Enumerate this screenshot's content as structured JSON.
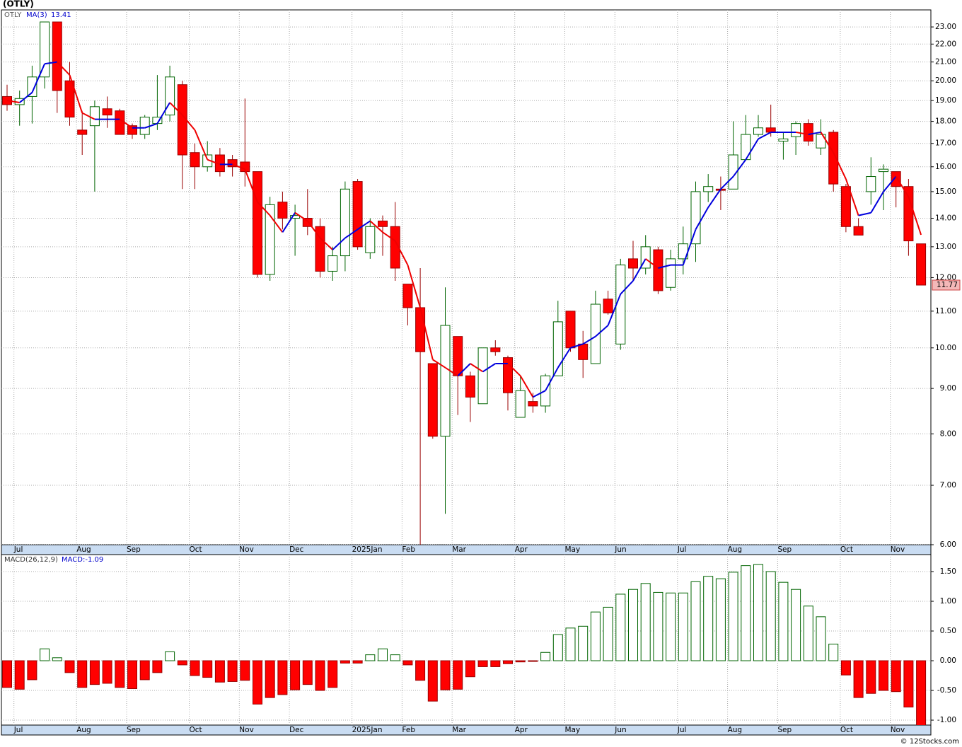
{
  "title": "(OTLY)",
  "footer": "© 12Stocks.com",
  "chart_data": [
    {
      "type": "candlestick",
      "symbol": "OTLY",
      "ma_name": "MA(3)",
      "categories": [
        null,
        "Jul",
        null,
        null,
        null,
        null,
        "Aug",
        null,
        null,
        null,
        "Sep",
        null,
        null,
        null,
        null,
        "Oct",
        null,
        null,
        null,
        "Nov",
        null,
        null,
        null,
        "Dec",
        null,
        null,
        null,
        null,
        "2025Jan",
        null,
        null,
        null,
        "Feb",
        null,
        null,
        null,
        "Mar",
        null,
        null,
        null,
        null,
        "Apr",
        null,
        null,
        null,
        "May",
        null,
        null,
        null,
        "Jun",
        null,
        null,
        null,
        null,
        "Jul",
        null,
        null,
        null,
        "Aug",
        null,
        null,
        null,
        "Sep",
        null,
        null,
        null,
        null,
        "Oct",
        null,
        null,
        null,
        "Nov",
        null,
        null
      ],
      "open": [
        19.2,
        18.8,
        19.2,
        20.2,
        23.3,
        20.0,
        17.6,
        17.8,
        18.6,
        18.5,
        17.8,
        17.4,
        17.9,
        18.3,
        19.8,
        16.6,
        16.0,
        16.5,
        16.3,
        16.2,
        15.8,
        12.1,
        14.6,
        14.0,
        14.0,
        13.7,
        12.2,
        12.7,
        15.4,
        12.8,
        13.9,
        13.7,
        11.8,
        11.1,
        9.6,
        7.95,
        10.3,
        9.3,
        8.65,
        10.0,
        9.75,
        8.35,
        8.7,
        8.6,
        9.3,
        11.0,
        10.1,
        9.6,
        11.35,
        10.1,
        12.6,
        12.3,
        12.9,
        11.7,
        12.6,
        13.1,
        15.0,
        15.1,
        15.1,
        16.3,
        17.4,
        17.7,
        17.1,
        17.3,
        17.9,
        16.8,
        17.5,
        15.2,
        13.7,
        15.0,
        15.8,
        15.8,
        15.2,
        13.1
      ],
      "high": [
        19.8,
        19.5,
        20.8,
        23.3,
        23.3,
        21.0,
        18.5,
        19.0,
        19.2,
        18.6,
        17.9,
        18.3,
        20.3,
        20.8,
        20.0,
        17.0,
        17.1,
        16.8,
        16.5,
        19.1,
        15.8,
        14.8,
        15.0,
        14.5,
        15.1,
        14.0,
        13.0,
        15.4,
        15.5,
        14.0,
        14.1,
        14.6,
        11.8,
        12.3,
        9.6,
        11.7,
        10.3,
        9.4,
        10.0,
        10.2,
        9.8,
        9.3,
        8.9,
        9.35,
        11.3,
        11.0,
        10.45,
        11.6,
        11.6,
        12.6,
        13.2,
        13.4,
        13.0,
        12.9,
        13.7,
        15.4,
        15.7,
        15.6,
        18.0,
        18.3,
        18.3,
        18.8,
        17.5,
        18.0,
        18.1,
        18.1,
        17.6,
        15.3,
        14.0,
        16.4,
        16.1,
        15.8,
        15.5,
        13.1
      ],
      "low": [
        18.5,
        17.8,
        17.9,
        19.6,
        18.4,
        17.8,
        16.5,
        15.0,
        17.7,
        17.4,
        17.2,
        17.2,
        17.6,
        18.0,
        15.1,
        15.1,
        15.8,
        15.6,
        15.6,
        15.2,
        12.0,
        11.9,
        13.6,
        12.7,
        13.4,
        12.0,
        11.9,
        12.2,
        12.9,
        12.6,
        12.7,
        11.9,
        10.6,
        6.0,
        7.9,
        6.5,
        8.4,
        8.25,
        8.65,
        9.8,
        8.5,
        8.35,
        8.45,
        8.45,
        9.3,
        9.9,
        9.25,
        9.6,
        10.9,
        9.95,
        11.9,
        12.1,
        11.5,
        11.6,
        12.1,
        12.5,
        14.6,
        14.3,
        15.1,
        16.3,
        17.3,
        17.3,
        16.3,
        16.5,
        16.9,
        16.5,
        15.0,
        13.5,
        13.4,
        14.5,
        14.3,
        14.4,
        12.7,
        11.77
      ],
      "close": [
        18.8,
        19.1,
        20.2,
        23.3,
        19.5,
        18.2,
        17.4,
        18.7,
        18.3,
        17.4,
        17.4,
        18.2,
        18.2,
        20.2,
        16.5,
        16.0,
        16.5,
        15.8,
        16.0,
        15.8,
        12.1,
        14.5,
        14.0,
        14.1,
        13.7,
        12.2,
        12.7,
        15.1,
        13.0,
        13.7,
        13.7,
        12.3,
        11.1,
        9.9,
        7.95,
        10.6,
        9.3,
        8.8,
        10.0,
        9.9,
        8.9,
        8.95,
        8.6,
        9.3,
        10.7,
        10.0,
        9.7,
        11.2,
        10.95,
        12.4,
        12.3,
        13.0,
        11.6,
        12.6,
        13.1,
        15.0,
        15.2,
        15.05,
        16.5,
        17.4,
        17.7,
        17.5,
        17.2,
        17.9,
        17.1,
        17.4,
        15.3,
        13.7,
        13.4,
        15.6,
        15.9,
        15.2,
        13.2,
        11.77
      ],
      "ma": [
        19.0,
        18.9,
        19.4,
        20.9,
        21.0,
        20.3,
        18.4,
        18.1,
        18.1,
        18.1,
        17.7,
        17.7,
        17.9,
        18.9,
        18.3,
        17.6,
        16.3,
        16.1,
        16.1,
        15.9,
        14.6,
        14.1,
        13.5,
        14.2,
        13.9,
        13.3,
        12.9,
        13.3,
        13.6,
        13.9,
        13.5,
        13.2,
        12.4,
        11.1,
        9.7,
        9.5,
        9.3,
        9.6,
        9.4,
        9.6,
        9.6,
        9.3,
        8.8,
        8.95,
        9.5,
        10.0,
        10.1,
        10.3,
        10.6,
        11.5,
        11.9,
        12.6,
        12.3,
        12.4,
        12.4,
        13.6,
        14.4,
        15.1,
        15.6,
        16.3,
        17.2,
        17.5,
        17.5,
        17.5,
        17.4,
        17.5,
        16.6,
        15.5,
        14.1,
        14.2,
        15.0,
        15.6,
        14.8,
        13.41
      ],
      "up_color": "#006400",
      "down_color": "#ff0000",
      "ma_up_color": "#0000dd",
      "ma_down_color": "#ee0000",
      "log_scale": true,
      "grid": true,
      "ylim": [
        6.0,
        24.04
      ],
      "yticks": [
        {
          "value": 6,
          "label": "6.00"
        },
        {
          "value": 7,
          "label": "7.00"
        },
        {
          "value": 8,
          "label": "8.00"
        },
        {
          "value": 9,
          "label": "9.00"
        },
        {
          "value": 10,
          "label": "10.00"
        },
        {
          "value": 11,
          "label": "11.00"
        },
        {
          "value": 12,
          "label": "12.00"
        },
        {
          "value": 13,
          "label": "13.00"
        },
        {
          "value": 14,
          "label": "14.00"
        },
        {
          "value": 15,
          "label": "15.00"
        },
        {
          "value": 16,
          "label": "16.00"
        },
        {
          "value": 17,
          "label": "17.00"
        },
        {
          "value": 18,
          "label": "18.00"
        },
        {
          "value": 19,
          "label": "19.00"
        },
        {
          "value": 20,
          "label": "20.00"
        },
        {
          "value": 21,
          "label": "21.00"
        },
        {
          "value": 22,
          "label": "22.00"
        },
        {
          "value": 23,
          "label": "23.00"
        }
      ]
    },
    {
      "type": "bar",
      "title": "MACD(26,12,9)",
      "value_label": "MACD:-1.09",
      "values": [
        -0.45,
        -0.48,
        -0.32,
        0.2,
        0.05,
        -0.2,
        -0.45,
        -0.4,
        -0.38,
        -0.45,
        -0.47,
        -0.32,
        -0.2,
        0.15,
        -0.07,
        -0.25,
        -0.28,
        -0.36,
        -0.35,
        -0.33,
        -0.73,
        -0.62,
        -0.57,
        -0.49,
        -0.4,
        -0.5,
        -0.45,
        -0.04,
        -0.04,
        0.1,
        0.2,
        0.1,
        -0.07,
        -0.33,
        -0.68,
        -0.49,
        -0.48,
        -0.27,
        -0.1,
        -0.1,
        -0.05,
        -0.02,
        -0.01,
        0.14,
        0.44,
        0.55,
        0.58,
        0.82,
        0.9,
        1.12,
        1.2,
        1.3,
        1.15,
        1.14,
        1.14,
        1.33,
        1.42,
        1.38,
        1.49,
        1.6,
        1.62,
        1.5,
        1.32,
        1.2,
        0.92,
        0.74,
        0.28,
        -0.24,
        -0.62,
        -0.55,
        -0.5,
        -0.52,
        -0.78,
        -1.09
      ],
      "positive_color": "#006400",
      "negative_color": "#ff0000",
      "grid": true,
      "ylim": [
        -1.083,
        1.786
      ],
      "yticks": [
        {
          "value": -1,
          "label": "-1.00"
        },
        {
          "value": -0.5,
          "label": "-0.50"
        },
        {
          "value": 0,
          "label": "0.00"
        },
        {
          "value": 0.5,
          "label": "0.50"
        },
        {
          "value": 1,
          "label": "1.00"
        },
        {
          "value": 1.5,
          "label": "1.50"
        }
      ]
    }
  ]
}
